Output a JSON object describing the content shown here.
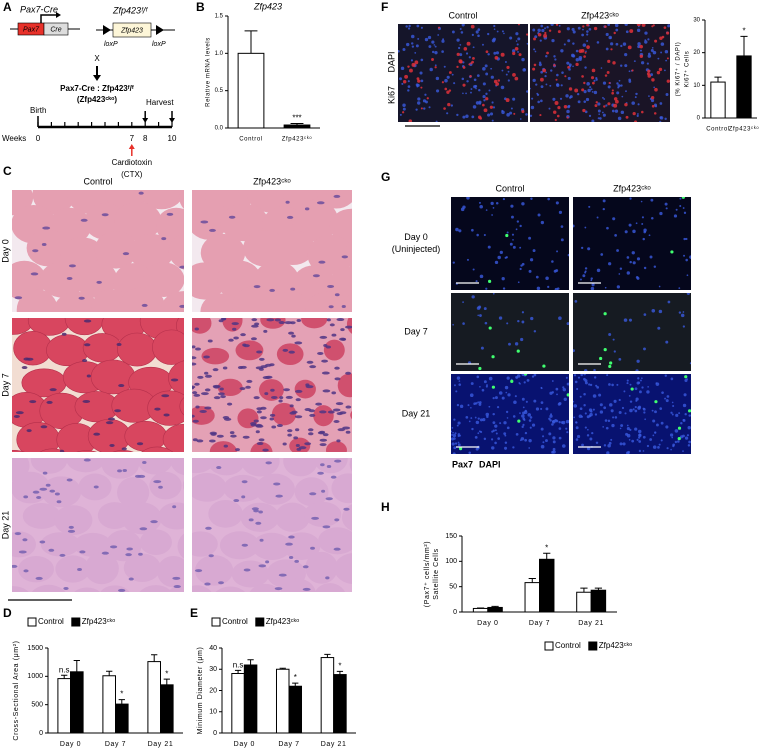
{
  "panel_labels": [
    "A",
    "B",
    "C",
    "D",
    "E",
    "F",
    "G",
    "H"
  ],
  "diagram": {
    "cre_title": "Pax7-Cre",
    "promoter": "Pax7",
    "cre": "Cre",
    "flox_title": "Zfp423ᶠ/ᶠ",
    "gene": "Zfp423",
    "loxp": [
      "loxP",
      "loxP"
    ],
    "cross": "X",
    "offspring": "Pax7-Cre : Zfp423ᶠ/ᶠ",
    "offspring_short": "(Zfp423ᶜᵏᵒ)",
    "birth": "Birth",
    "harvest": "Harvest",
    "weeks_label": "Weeks",
    "weeks": [
      0,
      7,
      8,
      10
    ],
    "injection": "Cardiotoxin",
    "injection_short": "(CTX)"
  },
  "panel_c": {
    "columns": [
      "Control",
      "Zfp423ᶜᵏᵒ"
    ],
    "rows": [
      "Day 0",
      "Day 7",
      "Day 21"
    ]
  },
  "panel_f": {
    "columns": [
      "Control",
      "Zfp423ᶜᵏᵒ"
    ],
    "stains": [
      "Ki67",
      "DAPI"
    ]
  },
  "panel_g": {
    "columns": [
      "Control",
      "Zfp423ᶜᵏᵒ"
    ],
    "rows": [
      "Day 0",
      "Day 7",
      "Day 21"
    ],
    "uninjected": "(Uninjected)",
    "stains": [
      "Pax7",
      "DAPI"
    ]
  },
  "chart_data": [
    {
      "type": "bar",
      "title": "Zfp423",
      "ylabel": "Relative mRNA levels",
      "categories": [
        "Control",
        "Zfp423ᶜᵏᵒ"
      ],
      "values": [
        1.0,
        0.04
      ],
      "errors": [
        0.3,
        0.02
      ],
      "annotations": [
        null,
        "***"
      ],
      "colors": [
        "#ffffff",
        "#000000"
      ],
      "ylim": [
        0,
        1.5
      ],
      "yticks": [
        {
          "value": 0,
          "label": "0.0"
        },
        0.5,
        {
          "value": 1,
          "label": "1.0"
        },
        1.5
      ]
    },
    {
      "type": "bar",
      "ylabel": [
        "Ki67⁺ Cells",
        "(% Ki67⁺ / DAPI)"
      ],
      "categories": [
        "Control",
        "Zfp423ᶜᵏᵒ"
      ],
      "values": [
        11,
        19
      ],
      "errors": [
        1.5,
        6
      ],
      "annotations": [
        null,
        "*"
      ],
      "colors": [
        "#ffffff",
        "#000000"
      ],
      "ylim": [
        0,
        30
      ],
      "yticks": [
        0,
        10,
        20,
        30
      ]
    },
    {
      "type": "bar",
      "ylabel": "Cross-Sectional Area (μm²)",
      "categories": [
        "Day 0",
        "Day 7",
        "Day 21"
      ],
      "series": [
        {
          "name": "Control",
          "color": "#ffffff",
          "values": [
            960,
            1010,
            1260
          ],
          "errors": [
            60,
            80,
            120
          ],
          "annotations": [
            "n.s",
            null,
            null
          ]
        },
        {
          "name": "Zfp423ᶜᵏᵒ",
          "color": "#000000",
          "values": [
            1080,
            510,
            850
          ],
          "errors": [
            200,
            80,
            100
          ],
          "annotations": [
            null,
            "*",
            "*"
          ]
        }
      ],
      "legend": "top",
      "ylim": [
        0,
        1500
      ],
      "yticks": [
        0,
        500,
        1000,
        1500
      ]
    },
    {
      "type": "bar",
      "ylabel": "Minimum Diameter (μm)",
      "categories": [
        "Day 0",
        "Day 7",
        "Day 21"
      ],
      "series": [
        {
          "name": "Control",
          "color": "#ffffff",
          "values": [
            28,
            30,
            35.5
          ],
          "errors": [
            1.5,
            0.5,
            1.5
          ],
          "annotations": [
            "n.s",
            null,
            null
          ]
        },
        {
          "name": "Zfp423ᶜᵏᵒ",
          "color": "#000000",
          "values": [
            32,
            22,
            27.5
          ],
          "errors": [
            2.5,
            1.5,
            1.5
          ],
          "annotations": [
            null,
            "*",
            "*"
          ]
        }
      ],
      "legend": "top",
      "ylim": [
        0,
        40
      ],
      "yticks": [
        0,
        10,
        20,
        30,
        40
      ]
    },
    {
      "type": "bar",
      "ylabel": [
        "Satellite Cells",
        "(Pax7⁺ cells/mm²)"
      ],
      "categories": [
        "Day 0",
        "Day 7",
        "Day 21"
      ],
      "series": [
        {
          "name": "Control",
          "color": "#ffffff",
          "values": [
            7,
            58,
            39
          ],
          "errors": [
            1,
            8,
            8
          ],
          "annotations": [
            null,
            null,
            null
          ]
        },
        {
          "name": "Zfp423ᶜᵏᵒ",
          "color": "#000000",
          "values": [
            9,
            104,
            43
          ],
          "errors": [
            2,
            12,
            4
          ],
          "annotations": [
            null,
            "*",
            null
          ]
        }
      ],
      "legend": "bottom",
      "ylim": [
        0,
        150
      ],
      "yticks": [
        0,
        50,
        100,
        150
      ]
    }
  ]
}
